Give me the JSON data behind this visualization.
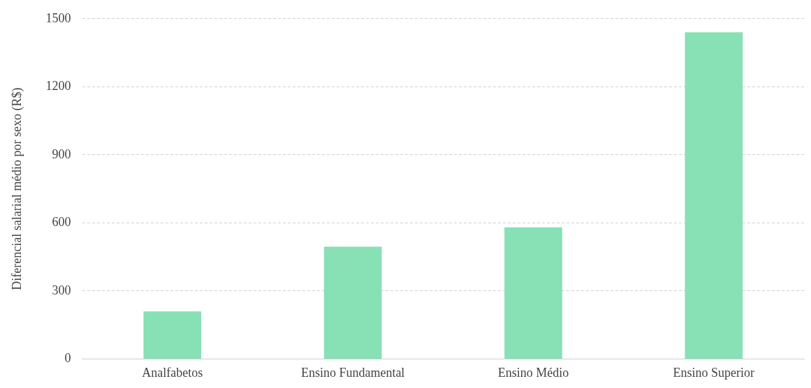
{
  "chart_data": {
    "type": "bar",
    "ylabel": "Diferencial salarial médio por sexo (R$)",
    "categories": [
      "Analfabetos",
      "Ensino Fundamental",
      "Ensino Médio",
      "Ensino Superior"
    ],
    "values": [
      210,
      495,
      580,
      1440
    ],
    "color": "#88e0b5",
    "ylim": [
      0,
      1500
    ],
    "yticks": [
      0,
      300,
      600,
      900,
      1200,
      1500
    ],
    "grid": "y",
    "legend": false
  }
}
